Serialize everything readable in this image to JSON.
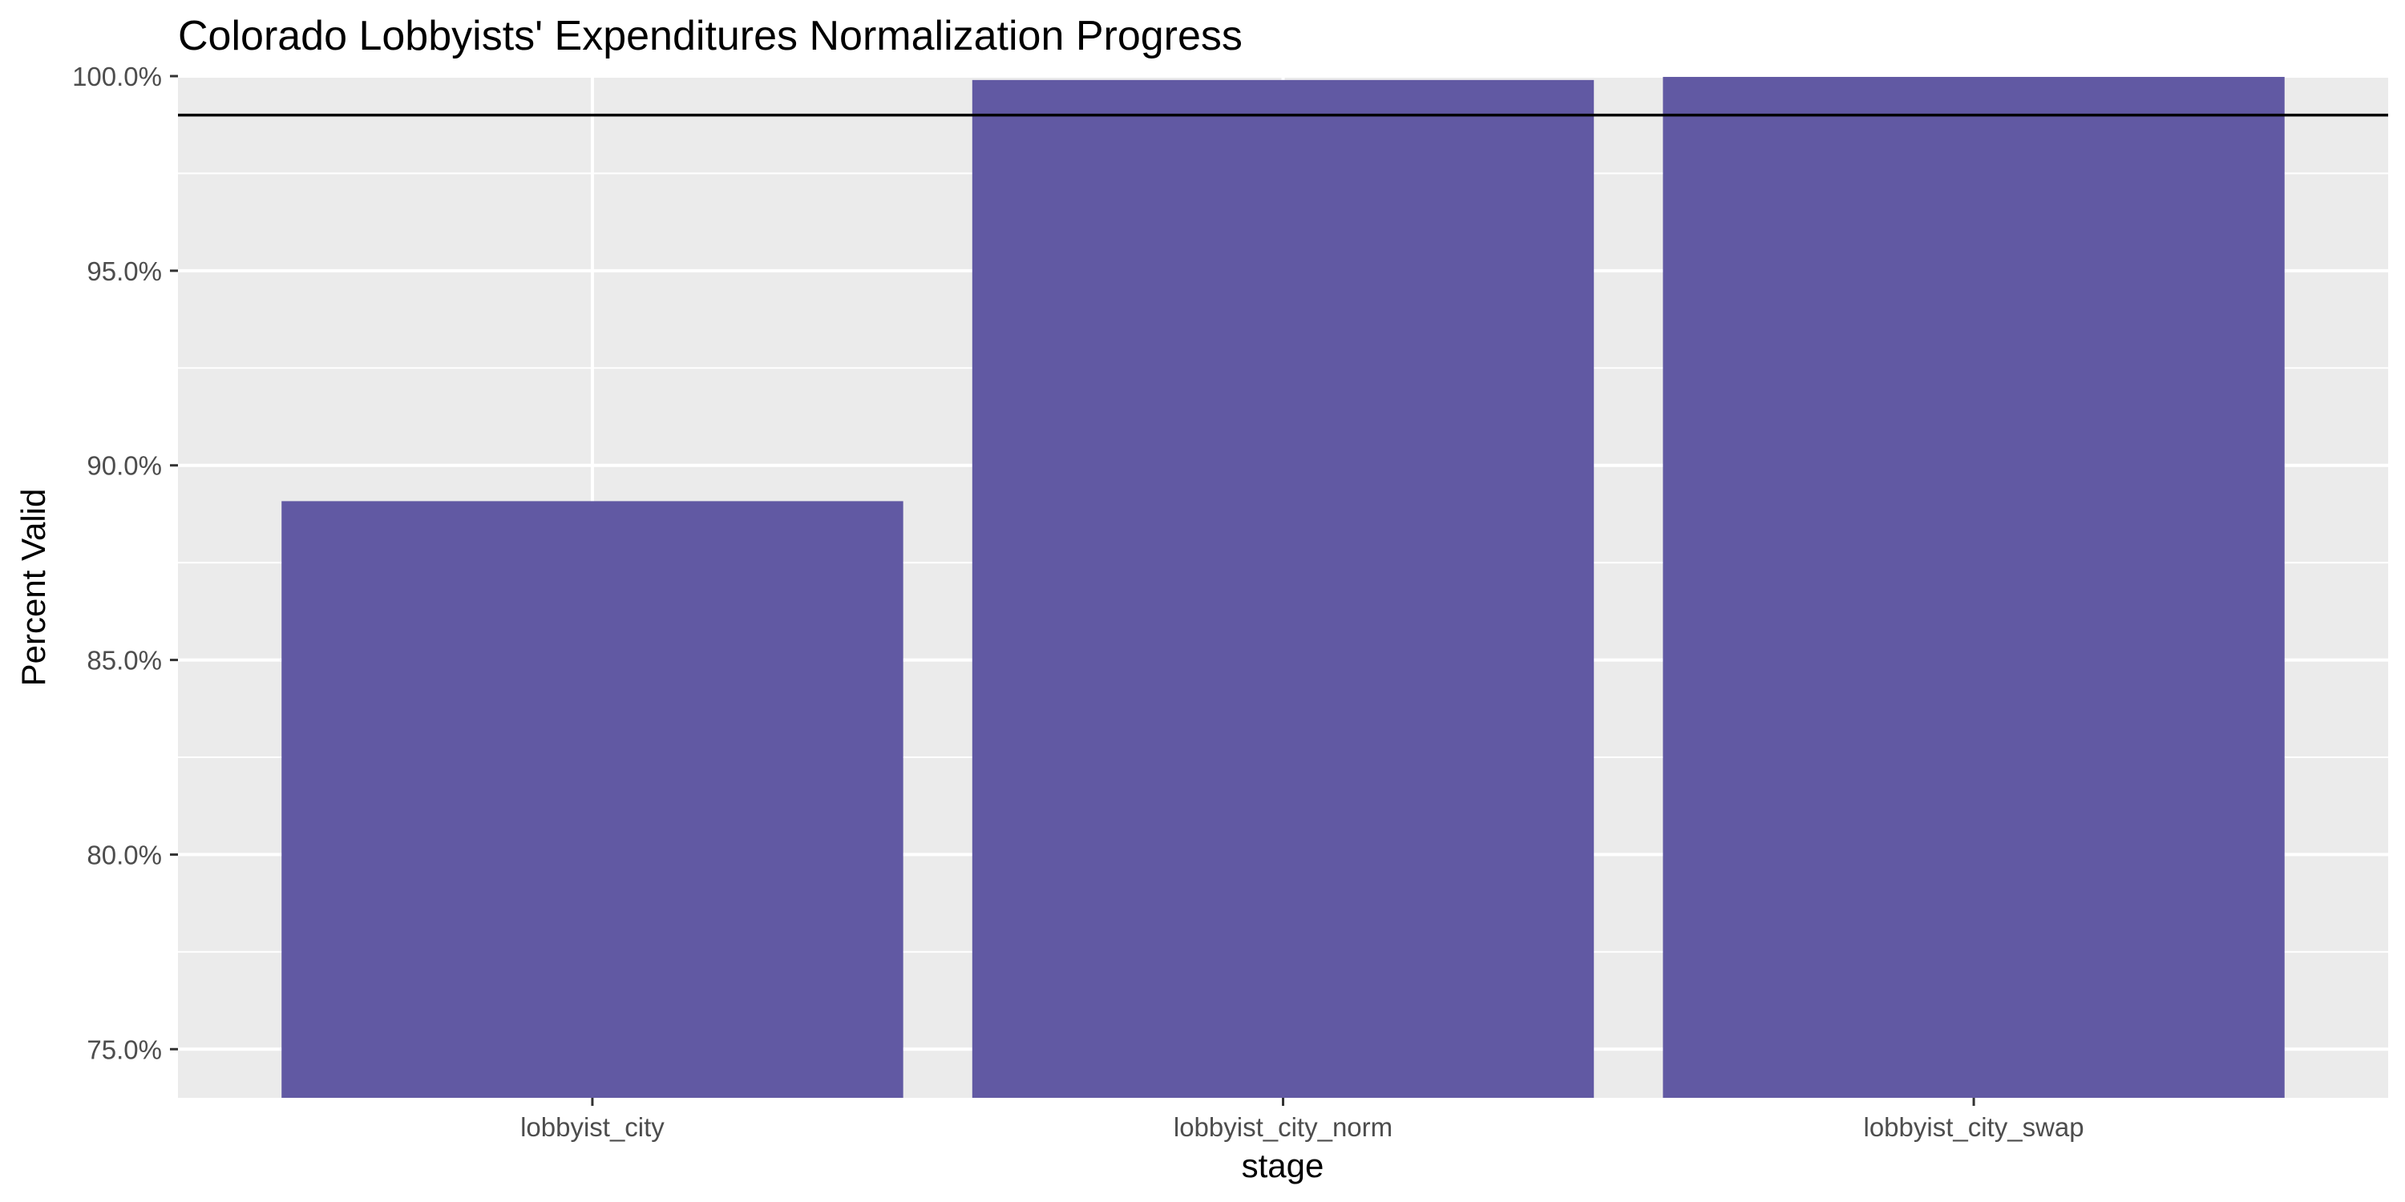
{
  "chart_data": {
    "type": "bar",
    "title": "Colorado Lobbyists' Expenditures Normalization Progress",
    "xlabel": "stage",
    "ylabel": "Percent Valid",
    "categories": [
      "lobbyist_city",
      "lobbyist_city_norm",
      "lobbyist_city_swap"
    ],
    "values": [
      0.8908,
      0.999,
      0.9998
    ],
    "ylim": [
      0.7375,
      1.0
    ],
    "y_ticks": [
      0.75,
      0.8,
      0.85,
      0.9,
      0.95,
      1.0
    ],
    "y_tick_labels": [
      "75.0%",
      "80.0%",
      "85.0%",
      "90.0%",
      "95.0%",
      "100.0%"
    ],
    "reference_line": 0.99,
    "grid": true,
    "legend": "none",
    "colors": {
      "bar": "#6159A3",
      "panel": "#EBEBEB",
      "grid": "#FFFFFF",
      "reference_line": "#000000",
      "tick_text": "#4D4D4D"
    }
  }
}
